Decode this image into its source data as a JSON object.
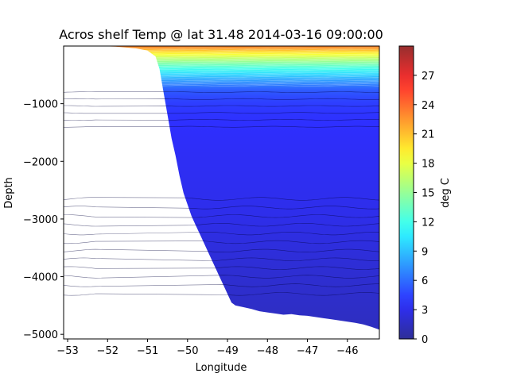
{
  "chart_data": {
    "type": "contourf",
    "title": "Acros shelf Temp @ lat 31.48 2014-03-16 09:00:00",
    "xlabel": "Longitude",
    "ylabel": "Depth",
    "xlim": [
      -53.1,
      -45.2
    ],
    "ylim": [
      -5080,
      0
    ],
    "xticks": [
      -53,
      -52,
      -51,
      -50,
      -49,
      -48,
      -47,
      -46
    ],
    "yticks": [
      -1000,
      -2000,
      -3000,
      -4000,
      -5000
    ],
    "colorbar": {
      "label": "deg C",
      "colormap": "jet",
      "range": [
        0,
        30
      ],
      "ticks": [
        0,
        3,
        6,
        9,
        12,
        15,
        18,
        21,
        24,
        27
      ]
    },
    "seafloor_profile": {
      "lon": [
        -52.2,
        -51.8,
        -51.3,
        -51.0,
        -50.8,
        -50.7,
        -50.6,
        -50.5,
        -50.4,
        -50.3,
        -50.2,
        -50.1,
        -50.0,
        -49.9,
        -49.8,
        -49.7,
        -49.6,
        -49.5,
        -49.4,
        -49.3,
        -49.2,
        -49.1,
        -49.0,
        -48.9,
        -48.8,
        -48.6,
        -48.4,
        -48.2,
        -48.0,
        -47.8,
        -47.6,
        -47.4,
        -47.2,
        -47.0,
        -46.8,
        -46.6,
        -46.4,
        -46.2,
        -46.0,
        -45.8,
        -45.6,
        -45.4,
        -45.2
      ],
      "depth": [
        0,
        -10,
        -40,
        -80,
        -180,
        -400,
        -800,
        -1200,
        -1600,
        -1900,
        -2250,
        -2550,
        -2750,
        -2950,
        -3100,
        -3250,
        -3400,
        -3550,
        -3700,
        -3850,
        -4000,
        -4150,
        -4300,
        -4450,
        -4500,
        -4530,
        -4560,
        -4600,
        -4620,
        -4640,
        -4660,
        -4650,
        -4670,
        -4680,
        -4700,
        -4720,
        -4740,
        -4760,
        -4780,
        -4800,
        -4830,
        -4870,
        -4920
      ]
    },
    "temperature_vs_depth": {
      "depth": [
        0,
        -50,
        -100,
        -150,
        -200,
        -300,
        -400,
        -500,
        -600,
        -700,
        -800,
        -900,
        -1000,
        -1200,
        -1400,
        -1600,
        -2000,
        -3000,
        -4000,
        -5000
      ],
      "temp": [
        23.5,
        22,
        20,
        18.5,
        17,
        14.5,
        12,
        10,
        8,
        6.5,
        5.3,
        4.8,
        4.4,
        4.0,
        3.8,
        3.6,
        3.4,
        3.0,
        2.2,
        1.5
      ]
    }
  }
}
